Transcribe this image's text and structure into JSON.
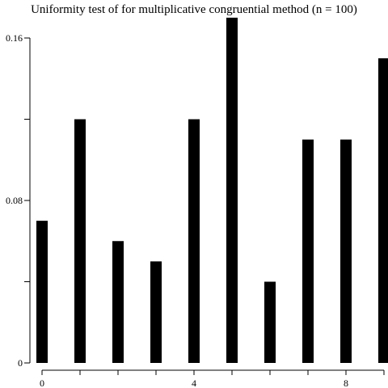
{
  "chart_data": {
    "type": "bar",
    "title": "Uniformity test of for multiplicative congruential method (n = 100)",
    "xlabel": "",
    "ylabel": "",
    "categories": [
      0,
      1,
      2,
      3,
      4,
      5,
      6,
      7,
      8,
      9
    ],
    "values": [
      0.07,
      0.12,
      0.06,
      0.05,
      0.12,
      0.17,
      0.04,
      0.11,
      0.11,
      0.15
    ],
    "ylim": [
      0,
      0.16
    ],
    "xlim": [
      0,
      9
    ],
    "y_ticks": [
      0,
      0.04,
      0.08,
      0.12,
      0.16
    ],
    "y_tick_labels": [
      "0",
      "",
      "0.08",
      "",
      "0.16"
    ],
    "x_ticks": [
      0,
      1,
      2,
      3,
      4,
      5,
      6,
      7,
      8,
      9
    ],
    "x_tick_labels": [
      "0",
      "",
      "",
      "",
      "4",
      "",
      "",
      "",
      "8",
      ""
    ],
    "bar_color": "#000000",
    "grid": false,
    "legend": "none"
  }
}
